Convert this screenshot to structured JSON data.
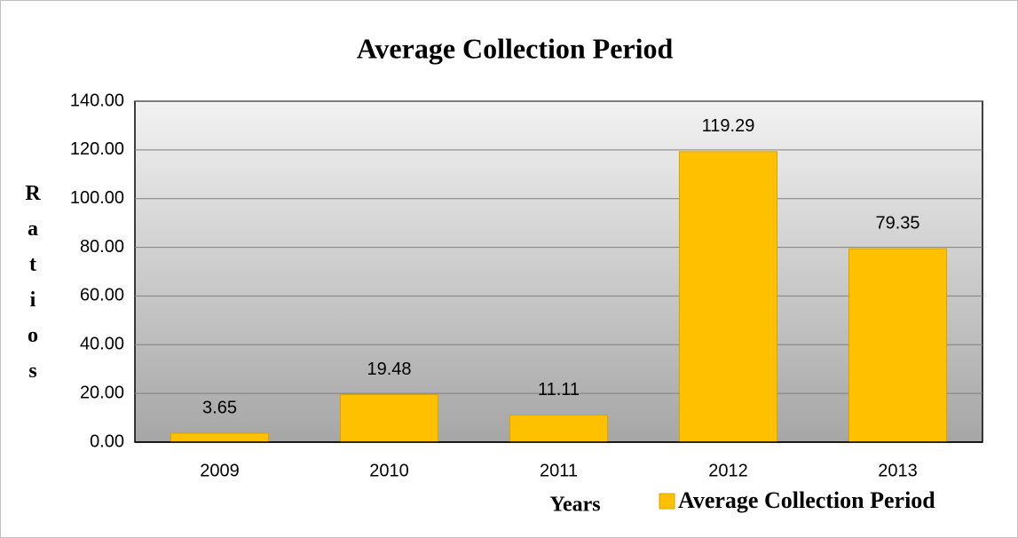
{
  "chart_data": {
    "type": "bar",
    "title": "Average Collection Period",
    "x_label": "Years",
    "y_label": "Ratios",
    "categories": [
      "2009",
      "2010",
      "2011",
      "2012",
      "2013"
    ],
    "series": [
      {
        "name": "Average Collection Period",
        "color": "#ffc000",
        "values": [
          3.65,
          19.48,
          11.11,
          119.29,
          79.35
        ]
      }
    ],
    "ylim": [
      0,
      140
    ],
    "yticks": [
      {
        "value": 0,
        "label": "0.00"
      },
      {
        "value": 20,
        "label": "20.00"
      },
      {
        "value": 40,
        "label": "40.00"
      },
      {
        "value": 60,
        "label": "60.00"
      },
      {
        "value": 80,
        "label": "80.00"
      },
      {
        "value": 100,
        "label": "100.00"
      },
      {
        "value": 120,
        "label": "120.00"
      },
      {
        "value": 140,
        "label": "140.00"
      }
    ],
    "grid": true,
    "legend": "bottom-right"
  }
}
